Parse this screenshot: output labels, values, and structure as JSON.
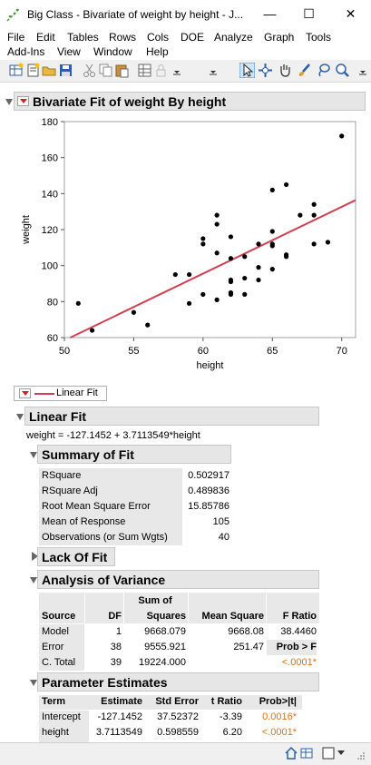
{
  "window": {
    "title": "Big Class - Bivariate of weight by height - J...",
    "minimize": "—",
    "maximize": "☐",
    "close": "✕"
  },
  "menu": [
    "File",
    "Edit",
    "Tables",
    "Rows",
    "Cols",
    "DOE",
    "Analyze",
    "Graph",
    "Tools",
    "Add-Ins",
    "View",
    "Window",
    "Help"
  ],
  "toolbar_icons": [
    "new-table-icon",
    "new-script-icon",
    "open-icon",
    "save-icon",
    "cut-icon",
    "copy-icon",
    "paste-icon",
    "data-grid-icon",
    "lock-icon",
    "arrow-tool-icon",
    "crosshair-tool-icon",
    "hand-tool-icon",
    "brush-tool-icon",
    "lasso-tool-icon",
    "zoom-tool-icon"
  ],
  "report": {
    "title": "Bivariate Fit of weight By height",
    "legend_label": "Linear Fit",
    "linear_fit_title": "Linear Fit",
    "equation": "weight = -127.1452 + 3.7113549*height",
    "summary": {
      "title": "Summary of Fit",
      "rows": [
        {
          "label": "RSquare",
          "value": "0.502917"
        },
        {
          "label": "RSquare Adj",
          "value": "0.489836"
        },
        {
          "label": "Root Mean Square Error",
          "value": "15.85786"
        },
        {
          "label": "Mean of Response",
          "value": "105"
        },
        {
          "label": "Observations (or Sum Wgts)",
          "value": "40"
        }
      ]
    },
    "lack_of_fit_title": "Lack Of Fit",
    "anova": {
      "title": "Analysis of Variance",
      "header": {
        "source": "Source",
        "df": "DF",
        "ss_top": "Sum of",
        "ss_bottom": "Squares",
        "ms": "Mean Square",
        "f": "F Ratio"
      },
      "rows": [
        {
          "source": "Model",
          "df": "1",
          "ss": "9668.079",
          "ms": "9668.08",
          "f": "38.4460"
        },
        {
          "source": "Error",
          "df": "38",
          "ss": "9555.921",
          "ms": "251.47",
          "f": "Prob > F"
        },
        {
          "source": "C. Total",
          "df": "39",
          "ss": "19224.000",
          "ms": "",
          "f": "<.0001*"
        }
      ]
    },
    "params": {
      "title": "Parameter Estimates",
      "header": {
        "term": "Term",
        "est": "Estimate",
        "se": "Std Error",
        "t": "t Ratio",
        "p": "Prob>|t|"
      },
      "rows": [
        {
          "term": "Intercept",
          "est": "-127.1452",
          "se": "37.52372",
          "t": "-3.39",
          "p": "0.0016*"
        },
        {
          "term": "height",
          "est": "3.7113549",
          "se": "0.598559",
          "t": "6.20",
          "p": "<.0001*"
        }
      ]
    }
  },
  "chart_data": {
    "type": "scatter",
    "xlabel": "height",
    "ylabel": "weight",
    "xlim": [
      50,
      71
    ],
    "ylim": [
      60,
      180
    ],
    "xticks": [
      50,
      55,
      60,
      65,
      70
    ],
    "yticks": [
      60,
      80,
      100,
      120,
      140,
      160,
      180
    ],
    "points": [
      [
        51,
        79
      ],
      [
        52,
        64
      ],
      [
        55,
        74
      ],
      [
        56,
        67
      ],
      [
        58,
        95
      ],
      [
        59,
        79
      ],
      [
        59,
        95
      ],
      [
        60,
        84
      ],
      [
        60,
        112
      ],
      [
        60,
        115
      ],
      [
        61,
        81
      ],
      [
        61,
        107
      ],
      [
        61,
        123
      ],
      [
        61,
        128
      ],
      [
        62,
        84
      ],
      [
        62,
        85
      ],
      [
        62,
        91
      ],
      [
        62,
        92
      ],
      [
        62,
        104
      ],
      [
        62,
        116
      ],
      [
        63,
        84
      ],
      [
        63,
        93
      ],
      [
        63,
        105
      ],
      [
        64,
        92
      ],
      [
        64,
        99
      ],
      [
        64,
        112
      ],
      [
        65,
        98
      ],
      [
        65,
        112
      ],
      [
        65,
        111
      ],
      [
        65,
        119
      ],
      [
        65,
        142
      ],
      [
        66,
        105
      ],
      [
        66,
        106
      ],
      [
        66,
        145
      ],
      [
        67,
        128
      ],
      [
        68,
        112
      ],
      [
        68,
        128
      ],
      [
        68,
        134
      ],
      [
        69,
        113
      ],
      [
        70,
        172
      ]
    ],
    "fit": {
      "intercept": -127.1452,
      "slope": 3.7113549,
      "color": "#d04050"
    },
    "grid": false
  }
}
